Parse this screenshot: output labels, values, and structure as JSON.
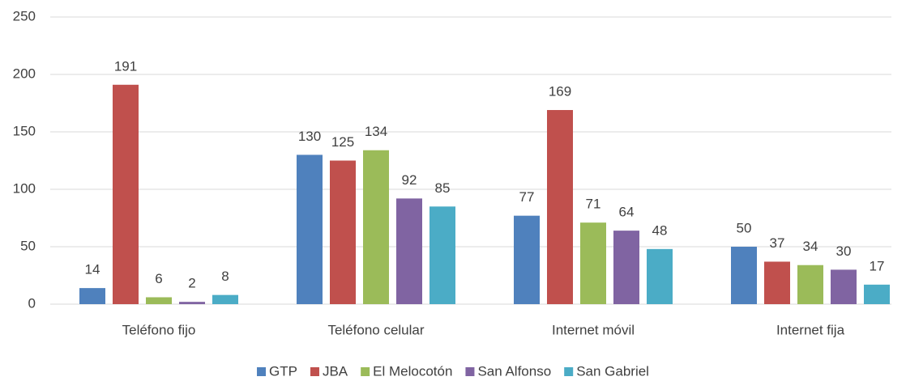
{
  "chart_data": {
    "type": "bar",
    "categories": [
      "Teléfono fijo",
      "Teléfono celular",
      "Internet móvil",
      "Internet fija"
    ],
    "series": [
      {
        "name": "GTP",
        "color": "#4f81bd",
        "values": [
          14,
          130,
          77,
          50
        ]
      },
      {
        "name": "JBA",
        "color": "#c0504d",
        "values": [
          191,
          125,
          169,
          37
        ]
      },
      {
        "name": "El Melocotón",
        "color": "#9bbb59",
        "values": [
          6,
          134,
          71,
          34
        ]
      },
      {
        "name": "San Alfonso",
        "color": "#8064a2",
        "values": [
          2,
          92,
          64,
          30
        ]
      },
      {
        "name": "San Gabriel",
        "color": "#4bacc6",
        "values": [
          8,
          85,
          48,
          17
        ]
      }
    ],
    "ylim": [
      0,
      250
    ],
    "yticks": [
      0,
      50,
      100,
      150,
      200,
      250
    ],
    "grid": true,
    "legend": "bottom"
  }
}
